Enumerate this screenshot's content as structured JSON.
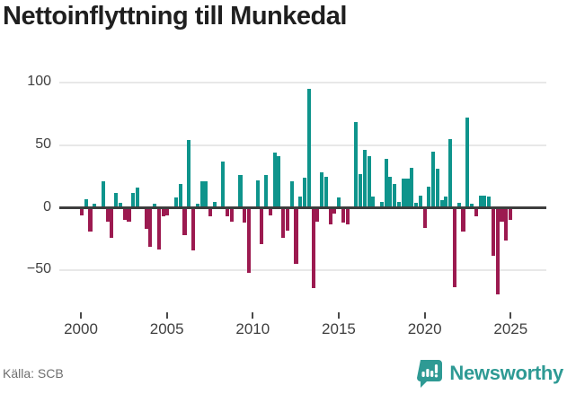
{
  "title": "Nettoinflyttning till Munkedal",
  "source": "Källa: SCB",
  "brand": {
    "name": "Newsworthy"
  },
  "colors": {
    "positive_bar": "#0e948c",
    "negative_bar": "#9c1a50",
    "brand_teal": "#2e9a94",
    "axis_text": "#404040",
    "zero_line": "#3d3d3d",
    "gridline": "#e8e8e8",
    "muted_text": "#6e6e6e",
    "title_text": "#1f1f1f"
  },
  "chart_data": {
    "type": "bar",
    "title": "Nettoinflyttning till Munkedal",
    "xlabel": "",
    "ylabel": "",
    "frequency": "quarterly",
    "start_period": "2000Q1",
    "end_period": "2025Q1",
    "x_ticks": [
      "2000",
      "2005",
      "2010",
      "2015",
      "2020",
      "2025"
    ],
    "y_ticks": [
      100,
      50,
      0,
      -50
    ],
    "y_tick_labels": [
      "100",
      "50",
      "0",
      "−50"
    ],
    "ylim": [
      -75,
      112
    ],
    "grid": "horizontal-only",
    "legend": "none",
    "values": [
      -6,
      7,
      -19,
      3,
      0,
      21,
      -11,
      -24,
      12,
      4,
      -10,
      -11,
      12,
      16,
      0,
      -17,
      -31,
      3,
      -33,
      -7,
      -6,
      0,
      8,
      19,
      -22,
      54,
      -34,
      3,
      21,
      21,
      -7,
      5,
      0,
      37,
      -7,
      -11,
      0,
      26,
      -12,
      -52,
      0,
      22,
      -29,
      26,
      -6,
      44,
      41,
      -24,
      -18,
      21,
      -45,
      9,
      24,
      95,
      -64,
      -11,
      28,
      25,
      -13,
      -5,
      8,
      -12,
      -13,
      0,
      68,
      27,
      46,
      41,
      9,
      0,
      5,
      39,
      25,
      19,
      5,
      23,
      23,
      32,
      4,
      10,
      -16,
      17,
      45,
      31,
      6,
      9,
      55,
      -63,
      4,
      -19,
      72,
      3,
      -7,
      10,
      10,
      9,
      -38,
      -69,
      -11,
      -26,
      -10
    ]
  }
}
